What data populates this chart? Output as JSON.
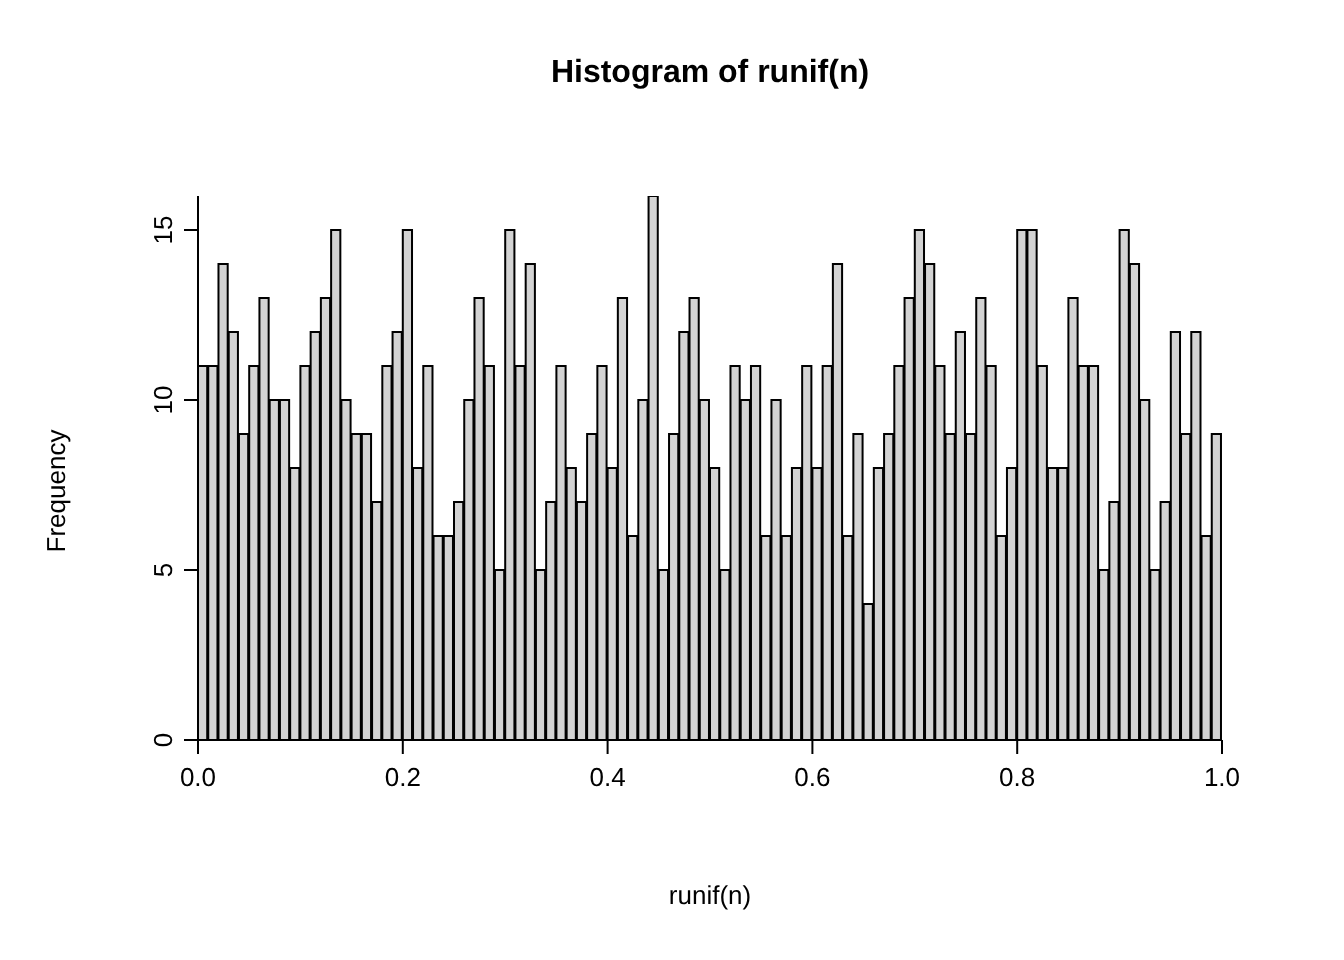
{
  "chart_data": {
    "type": "histogram",
    "title": "Histogram of runif(n)",
    "xlabel": "runif(n)",
    "ylabel": "Frequency",
    "color": "#d3d3d3",
    "bins": [
      0,
      0.01,
      0.02,
      0.03,
      0.04,
      0.05,
      0.06,
      0.07,
      0.08,
      0.09,
      0.1,
      0.11,
      0.12,
      0.13,
      0.14,
      0.15,
      0.16,
      0.17,
      0.18,
      0.19,
      0.2,
      0.21,
      0.22,
      0.23,
      0.24,
      0.25,
      0.26,
      0.27,
      0.28,
      0.29,
      0.3,
      0.31,
      0.32,
      0.33,
      0.34,
      0.35,
      0.36,
      0.37,
      0.38,
      0.39,
      0.4,
      0.41,
      0.42,
      0.43,
      0.44,
      0.45,
      0.46,
      0.47,
      0.48,
      0.49,
      0.5,
      0.51,
      0.52,
      0.53,
      0.54,
      0.55,
      0.56,
      0.57,
      0.58,
      0.59,
      0.6,
      0.61,
      0.62,
      0.63,
      0.64,
      0.65,
      0.66,
      0.67,
      0.68,
      0.69,
      0.7,
      0.71,
      0.72,
      0.73,
      0.74,
      0.75,
      0.76,
      0.77,
      0.78,
      0.79,
      0.8,
      0.81,
      0.82,
      0.83,
      0.84,
      0.85,
      0.86,
      0.87,
      0.88,
      0.89,
      0.9,
      0.91,
      0.92,
      0.93,
      0.94,
      0.95,
      0.96,
      0.97,
      0.98,
      0.99,
      1
    ],
    "values": [
      11,
      11,
      14,
      12,
      9,
      11,
      13,
      10,
      10,
      8,
      11,
      12,
      13,
      15,
      10,
      9,
      9,
      7,
      11,
      12,
      15,
      8,
      11,
      6,
      6,
      7,
      10,
      13,
      11,
      5,
      15,
      11,
      14,
      5,
      7,
      11,
      8,
      7,
      9,
      11,
      8,
      13,
      6,
      10,
      16,
      5,
      9,
      12,
      13,
      10,
      8,
      5,
      11,
      10,
      11,
      6,
      10,
      6,
      8,
      11,
      8,
      11,
      14,
      6,
      9,
      4,
      8,
      9,
      11,
      13,
      15,
      14,
      11,
      9,
      12,
      9,
      13,
      11,
      6,
      8,
      15,
      15,
      11,
      8,
      8,
      13,
      11,
      11,
      5,
      7,
      15,
      14,
      10,
      5,
      7,
      12,
      9,
      12,
      6,
      9
    ],
    "xlim": [
      0,
      1
    ],
    "xticks": [
      {
        "value": 0,
        "label": "0.0"
      },
      {
        "value": 0.2,
        "label": "0.2"
      },
      {
        "value": 0.4,
        "label": "0.4"
      },
      {
        "value": 0.6,
        "label": "0.6"
      },
      {
        "value": 0.8,
        "label": "0.8"
      },
      {
        "value": 1,
        "label": "1.0"
      }
    ],
    "ylim": [
      0,
      16
    ],
    "yticks": [
      0,
      5,
      10,
      15
    ],
    "grid": false,
    "legend": false
  }
}
